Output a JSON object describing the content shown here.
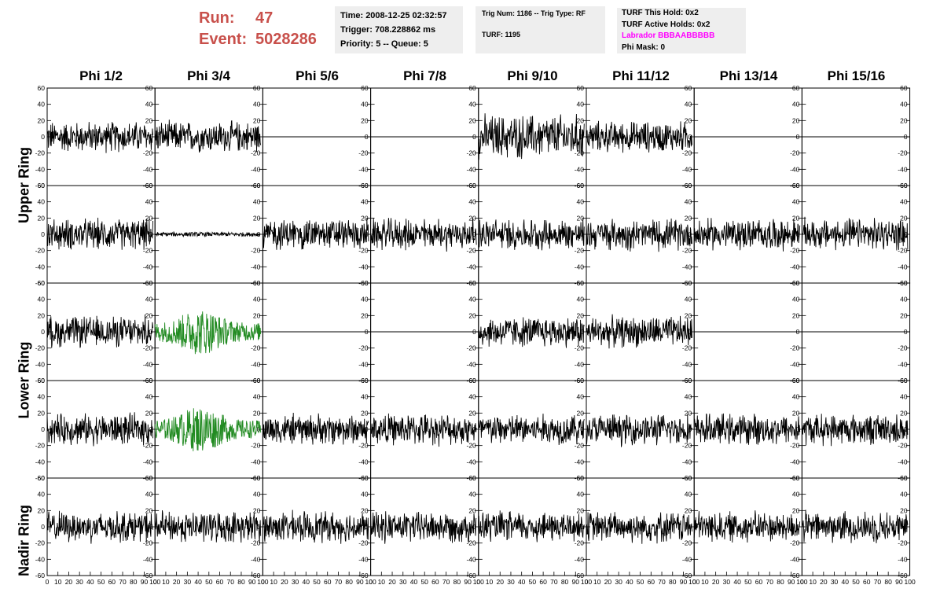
{
  "header": {
    "run_label": "Run:",
    "run_value": "47",
    "event_label": "Event:",
    "event_value": "5028286",
    "accent_color": "#c8504b"
  },
  "time_box": {
    "time": "Time: 2008-12-25 02:32:57",
    "trigger": "Trigger: 708.228862 ms",
    "priority": "Priority: 5 -- Queue: 5"
  },
  "trig_box": {
    "trig_line": "Trig Num: 1186 -- Trig Type: RF",
    "turf_line": "TURF: 1195"
  },
  "turf_box": {
    "this_hold": "TURF This Hold: 0x2",
    "active_holds": "TURF Active Holds: 0x2",
    "labrador": "Labrador BBBAABBBBB",
    "labrador_color": "#ff00ff",
    "phi_mask": "Phi Mask: 0"
  },
  "columns": [
    "Phi 1/2",
    "Phi 3/4",
    "Phi 5/6",
    "Phi 7/8",
    "Phi 9/10",
    "Phi 11/12",
    "Phi 13/14",
    "Phi 15/16"
  ],
  "ring_labels": {
    "upper": "Upper Ring",
    "lower": "Lower Ring",
    "nadir": "Nadir Ring"
  },
  "axis": {
    "y_ticks": [
      "60",
      "40",
      "20",
      "0",
      "-20",
      "-40",
      "-60"
    ],
    "x_ticks": [
      "0",
      "10",
      "20",
      "30",
      "40",
      "50",
      "60",
      "70",
      "80",
      "90",
      "100"
    ]
  },
  "chart_data": {
    "type": "line",
    "xlim": [
      0,
      100
    ],
    "ylim": [
      -60,
      60
    ],
    "grid": false,
    "trigger_color": "#228b22",
    "panels": [
      [
        "noise",
        "noise",
        "flat",
        "flat",
        "noise_big",
        "noise",
        "flat",
        "flat"
      ],
      [
        "noise",
        "quiet",
        "noise",
        "noise",
        "noise",
        "noise",
        "noise",
        "noise"
      ],
      [
        "noise",
        "trigger",
        "flat",
        "flat",
        "noise",
        "noise",
        "flat",
        "flat"
      ],
      [
        "noise",
        "trigger",
        "noise",
        "noise",
        "noise",
        "noise",
        "noise",
        "noise"
      ],
      [
        "noise",
        "noise",
        "noise",
        "noise",
        "noise",
        "noise",
        "noise",
        "noise"
      ]
    ]
  }
}
